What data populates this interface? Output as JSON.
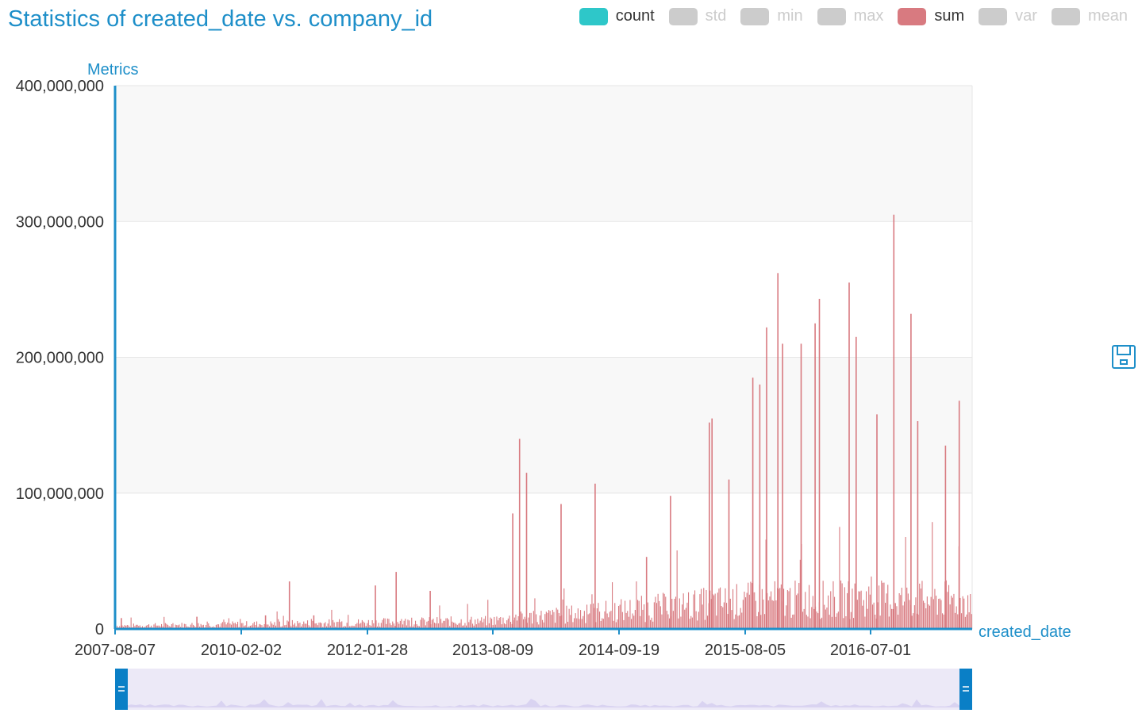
{
  "title": "Statistics of created_date vs. company_id",
  "legend": [
    {
      "name": "count",
      "color": "#2ec7c9",
      "active": true
    },
    {
      "name": "std",
      "color": "#cccccc",
      "active": false
    },
    {
      "name": "min",
      "color": "#cccccc",
      "active": false
    },
    {
      "name": "max",
      "color": "#cccccc",
      "active": false
    },
    {
      "name": "sum",
      "color": "#d87a80",
      "active": true
    },
    {
      "name": "var",
      "color": "#cccccc",
      "active": false
    },
    {
      "name": "mean",
      "color": "#cccccc",
      "active": false
    }
  ],
  "toolbox": {
    "save_icon": "save-icon"
  },
  "chart_data": {
    "type": "bar",
    "title": "Statistics of created_date vs. company_id",
    "xlabel": "created_date",
    "ylabel": "Metrics",
    "ylim": [
      0,
      400000000
    ],
    "y_ticks": [
      "0",
      "100,000,000",
      "200,000,000",
      "300,000,000",
      "400,000,000"
    ],
    "y_tick_values": [
      0,
      100000000,
      200000000,
      300000000,
      400000000
    ],
    "x_range": [
      "2007-08-07",
      "2017-12-31"
    ],
    "x_tick_labels": [
      "2007-08-07",
      "2010-02-02",
      "2012-01-28",
      "2013-08-09",
      "2014-09-19",
      "2015-08-05",
      "2016-07-01"
    ],
    "grid": true,
    "legend_position": "top-right",
    "series": [
      {
        "name": "count",
        "color": "#2ec7c9",
        "values_note": "near zero at this scale"
      },
      {
        "name": "sum",
        "color": "#d87a80",
        "peaks": [
          {
            "date": "2007-09-01",
            "value": 8000000
          },
          {
            "date": "2008-08-01",
            "value": 9000000
          },
          {
            "date": "2009-06-01",
            "value": 10000000
          },
          {
            "date": "2009-09-15",
            "value": 35000000
          },
          {
            "date": "2010-01-01",
            "value": 10000000
          },
          {
            "date": "2010-10-01",
            "value": 32000000
          },
          {
            "date": "2011-01-01",
            "value": 42000000
          },
          {
            "date": "2011-06-01",
            "value": 28000000
          },
          {
            "date": "2012-06-01",
            "value": 85000000
          },
          {
            "date": "2012-07-01",
            "value": 140000000
          },
          {
            "date": "2012-08-01",
            "value": 115000000
          },
          {
            "date": "2013-01-01",
            "value": 92000000
          },
          {
            "date": "2013-06-01",
            "value": 107000000
          },
          {
            "date": "2014-01-15",
            "value": 53000000
          },
          {
            "date": "2014-05-01",
            "value": 98000000
          },
          {
            "date": "2014-10-20",
            "value": 152000000
          },
          {
            "date": "2014-11-01",
            "value": 155000000
          },
          {
            "date": "2015-01-15",
            "value": 110000000
          },
          {
            "date": "2015-05-01",
            "value": 185000000
          },
          {
            "date": "2015-06-01",
            "value": 180000000
          },
          {
            "date": "2015-07-01",
            "value": 222000000
          },
          {
            "date": "2015-08-20",
            "value": 262000000
          },
          {
            "date": "2015-09-10",
            "value": 210000000
          },
          {
            "date": "2015-12-01",
            "value": 210000000
          },
          {
            "date": "2016-02-01",
            "value": 225000000
          },
          {
            "date": "2016-02-20",
            "value": 243000000
          },
          {
            "date": "2016-07-01",
            "value": 255000000
          },
          {
            "date": "2016-08-01",
            "value": 215000000
          },
          {
            "date": "2016-11-01",
            "value": 158000000
          },
          {
            "date": "2017-01-15",
            "value": 305000000
          },
          {
            "date": "2017-04-01",
            "value": 232000000
          },
          {
            "date": "2017-05-01",
            "value": 153000000
          },
          {
            "date": "2017-09-01",
            "value": 135000000
          },
          {
            "date": "2017-11-01",
            "value": 168000000
          }
        ]
      }
    ]
  }
}
